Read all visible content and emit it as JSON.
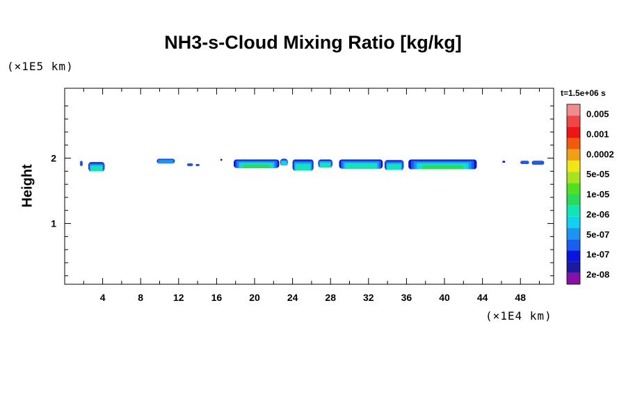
{
  "chart_data": {
    "type": "heatmap",
    "title": "NH3-s-Cloud Mixing Ratio [kg/kg]",
    "ylabel": "Height",
    "xunit": "(×1E4 km)",
    "yunit": "(×1E5 km)",
    "time_label": "t=1.5e+06 s",
    "xlim": [
      0,
      51.5
    ],
    "ylim": [
      0.07,
      3.07
    ],
    "x_ticks": [
      4,
      8,
      12,
      16,
      20,
      24,
      28,
      32,
      36,
      40,
      44,
      48
    ],
    "y_ticks": [
      1,
      2
    ],
    "colorbar": {
      "labels": [
        "0.005",
        "0.001",
        "0.0002",
        "5e-05",
        "1e-05",
        "2e-06",
        "5e-07",
        "1e-07",
        "2e-08"
      ],
      "colors": [
        "#8a0fa8",
        "#1a1a9e",
        "#0a14e0",
        "#1a5ef0",
        "#1a96f0",
        "#10d2f0",
        "#10e6b4",
        "#28dc5a",
        "#50e01e",
        "#a8e41e",
        "#f0e614",
        "#f0a014",
        "#f05a0a",
        "#f01414",
        "#f04646",
        "#f08c8c"
      ]
    },
    "cloud_patches": [
      {
        "x": [
          1.6,
          1.9
        ],
        "y": [
          1.88,
          1.96
        ],
        "level": 2
      },
      {
        "x": [
          2.5,
          4.2
        ],
        "y": [
          1.8,
          1.94
        ],
        "level": 5
      },
      {
        "x": [
          9.7,
          11.6
        ],
        "y": [
          1.92,
          1.99
        ],
        "level": 3
      },
      {
        "x": [
          12.9,
          13.5
        ],
        "y": [
          1.88,
          1.92
        ],
        "level": 2
      },
      {
        "x": [
          13.8,
          14.2
        ],
        "y": [
          1.88,
          1.91
        ],
        "level": 2
      },
      {
        "x": [
          16.4,
          16.6
        ],
        "y": [
          1.96,
          1.99
        ],
        "level": 1
      },
      {
        "x": [
          17.8,
          22.6
        ],
        "y": [
          1.85,
          1.98
        ],
        "level": 6
      },
      {
        "x": [
          22.7,
          23.5
        ],
        "y": [
          1.89,
          1.99
        ],
        "level": 4
      },
      {
        "x": [
          24.0,
          26.2
        ],
        "y": [
          1.81,
          1.98
        ],
        "level": 5
      },
      {
        "x": [
          26.7,
          28.2
        ],
        "y": [
          1.86,
          1.98
        ],
        "level": 5
      },
      {
        "x": [
          28.9,
          33.5
        ],
        "y": [
          1.84,
          1.98
        ],
        "level": 5
      },
      {
        "x": [
          33.7,
          35.7
        ],
        "y": [
          1.82,
          1.97
        ],
        "level": 5
      },
      {
        "x": [
          36.2,
          43.4
        ],
        "y": [
          1.83,
          1.98
        ],
        "level": 7
      },
      {
        "x": [
          46.1,
          46.4
        ],
        "y": [
          1.93,
          1.96
        ],
        "level": 1
      },
      {
        "x": [
          48.0,
          48.9
        ],
        "y": [
          1.91,
          1.96
        ],
        "level": 2
      },
      {
        "x": [
          49.2,
          50.5
        ],
        "y": [
          1.9,
          1.96
        ],
        "level": 2
      }
    ]
  }
}
